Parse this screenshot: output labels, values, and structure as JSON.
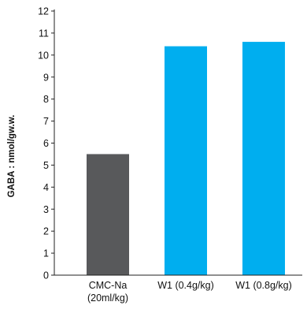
{
  "chart_data": {
    "type": "bar",
    "title": "",
    "xlabel": "",
    "ylabel": "GABA : nmol/gw.w.",
    "ylim": [
      0,
      12
    ],
    "yticks": [
      0,
      1,
      2,
      3,
      4,
      5,
      6,
      7,
      8,
      9,
      10,
      11,
      12
    ],
    "grid": false,
    "categories": [
      [
        "CMC-Na",
        "(20ml/kg)"
      ],
      [
        "W1 (0.4g/kg)"
      ],
      [
        "W1 (0.8g/kg)"
      ]
    ],
    "values": [
      5.5,
      10.4,
      10.6
    ],
    "colors": [
      "#58595b",
      "#00aeef",
      "#00aeef"
    ]
  }
}
